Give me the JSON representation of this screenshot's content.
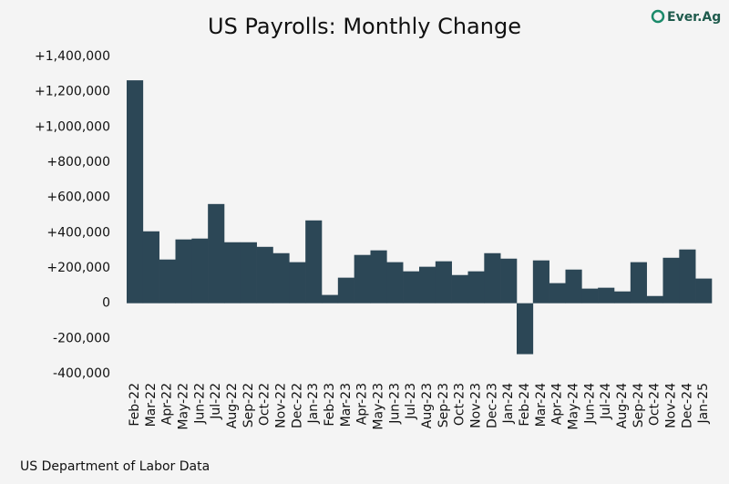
{
  "chart_data": {
    "type": "bar",
    "title": "US Payrolls: Monthly Change",
    "source": "US Department of Labor Data",
    "logo": "Ever.Ag",
    "categories": [
      "Feb-22",
      "Mar-22",
      "Apr-22",
      "May-22",
      "Jun-22",
      "Jul-22",
      "Aug-22",
      "Sep-22",
      "Oct-22",
      "Nov-22",
      "Dec-22",
      "Jan-23",
      "Feb-23",
      "Mar-23",
      "Apr-23",
      "May-23",
      "Jun-23",
      "Jul-23",
      "Aug-23",
      "Sep-23",
      "Oct-23",
      "Nov-23",
      "Dec-23",
      "Jan-24",
      "Feb-24",
      "Mar-24",
      "Apr-24",
      "May-24",
      "Jun-24",
      "Jul-24",
      "Aug-24",
      "Sep-24",
      "Oct-24",
      "Nov-24",
      "Dec-24",
      "Jan-25"
    ],
    "values": [
      1265000,
      408000,
      248000,
      362000,
      367000,
      563000,
      346000,
      346000,
      320000,
      284000,
      233000,
      470000,
      47000,
      145000,
      274000,
      300000,
      233000,
      181000,
      207000,
      238000,
      160000,
      181000,
      284000,
      253000,
      -289000,
      243000,
      114000,
      191000,
      83000,
      88000,
      67000,
      233000,
      41000,
      258000,
      305000,
      140000
    ],
    "color": "#2c4756",
    "ylim": [
      -400000,
      1400000
    ],
    "yticks": [
      {
        "value": -400000,
        "label": "-400,000"
      },
      {
        "value": -200000,
        "label": "-200,000"
      },
      0,
      {
        "value": 200000,
        "label": "+200,000"
      },
      {
        "value": 400000,
        "label": "+400,000"
      },
      {
        "value": 600000,
        "label": "+600,000"
      },
      {
        "value": 800000,
        "label": "+800,000"
      },
      {
        "value": 1000000,
        "label": "+1,000,000"
      },
      {
        "value": 1200000,
        "label": "+1,200,000"
      },
      {
        "value": 1400000,
        "label": "+1,400,000"
      }
    ],
    "grid": false
  }
}
